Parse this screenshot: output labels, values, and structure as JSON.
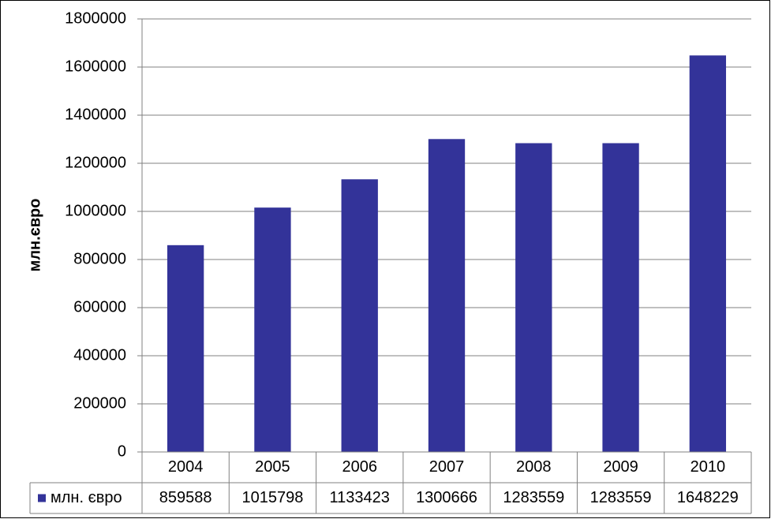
{
  "chart_data": {
    "type": "bar",
    "y_label": "млн.євро",
    "categories": [
      "2004",
      "2005",
      "2006",
      "2007",
      "2008",
      "2009",
      "2010"
    ],
    "series": [
      {
        "name": "млн. євро",
        "color": "#333399",
        "values": [
          859588,
          1015798,
          1133423,
          1300666,
          1283559,
          1283559,
          1648229
        ]
      }
    ],
    "ylim": [
      0,
      1800000
    ],
    "yticks": [
      0,
      200000,
      400000,
      600000,
      800000,
      1000000,
      1200000,
      1400000,
      1600000,
      1800000
    ],
    "grid": true,
    "data_table": true
  }
}
